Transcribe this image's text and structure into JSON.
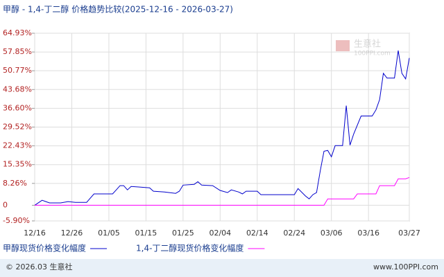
{
  "chart_data": {
    "type": "line",
    "title": "甲醇 - 1,4-丁二醇 价格趋势比较(2025-12-16 - 2026-03-27)",
    "ylim": [
      -5.9,
      64.93
    ],
    "yticks": [
      {
        "value": -5.9,
        "label": "-5.90%"
      },
      0,
      {
        "value": 8.26,
        "label": "8.26%"
      },
      {
        "value": 15.35,
        "label": "15.35%"
      },
      {
        "value": 22.43,
        "label": "22.43%"
      },
      {
        "value": 29.52,
        "label": "29.52%"
      },
      {
        "value": 36.6,
        "label": "36.60%"
      },
      {
        "value": 43.68,
        "label": "43.68%"
      },
      {
        "value": 50.77,
        "label": "50.77%"
      },
      {
        "value": 57.85,
        "label": "57.85%"
      },
      {
        "value": 64.93,
        "label": "64.93%"
      }
    ],
    "xlim": [
      "12/16",
      "03/27"
    ],
    "xticks": [
      "12/16",
      "12/26",
      "01/05",
      "01/15",
      "01/25",
      "02/04",
      "02/14",
      "02/24",
      "03/06",
      "03/16",
      "03/27"
    ],
    "grid": true,
    "series": [
      {
        "name": "甲醇现货价格变化幅度",
        "color": "#0000cc",
        "x": [
          "12/16",
          "12/18",
          "12/19",
          "12/20",
          "12/23",
          "12/25",
          "12/27",
          "12/30",
          "12/31",
          "01/01",
          "01/06",
          "01/07",
          "01/08",
          "01/09",
          "01/10",
          "01/11",
          "01/13",
          "01/16",
          "01/17",
          "01/20",
          "01/23",
          "01/24",
          "01/25",
          "01/28",
          "01/29",
          "01/30",
          "02/02",
          "02/04",
          "02/06",
          "02/07",
          "02/09",
          "02/10",
          "02/11",
          "02/14",
          "02/15",
          "02/24",
          "02/25",
          "02/27",
          "02/28",
          "03/01",
          "03/02",
          "03/03",
          "03/04",
          "03/05",
          "03/06",
          "03/07",
          "03/09",
          "03/10",
          "03/11",
          "03/12",
          "03/14",
          "03/17",
          "03/18",
          "03/19",
          "03/20",
          "03/21",
          "03/23",
          "03/24",
          "03/25",
          "03/26",
          "03/27"
        ],
        "values": [
          0,
          1.9,
          1.4,
          0.9,
          0.9,
          1.4,
          1.1,
          1.1,
          2.7,
          4.3,
          4.3,
          5.8,
          7.4,
          7.4,
          5.8,
          7.1,
          6.9,
          6.6,
          5.3,
          5.0,
          4.5,
          5.3,
          7.6,
          7.9,
          8.9,
          7.6,
          7.4,
          5.6,
          4.8,
          5.8,
          5.0,
          4.3,
          5.3,
          5.3,
          4.0,
          4.0,
          6.3,
          3.5,
          2.4,
          4.0,
          4.8,
          13.1,
          20.4,
          20.7,
          18.3,
          22.5,
          22.5,
          37.6,
          22.7,
          26.9,
          33.7,
          33.7,
          36.0,
          39.9,
          49.8,
          48.0,
          48.0,
          58.4,
          49.8,
          47.7,
          55.6
        ]
      },
      {
        "name": "1,4-丁二醇现货价格变化幅度",
        "color": "#ff00ff",
        "x": [
          "12/16",
          "03/04",
          "03/05",
          "03/12",
          "03/13",
          "03/18",
          "03/19",
          "03/23",
          "03/24",
          "03/26",
          "03/27"
        ],
        "values": [
          0,
          0,
          2.4,
          2.4,
          4.3,
          4.3,
          7.4,
          7.4,
          10.0,
          10.0,
          10.5
        ]
      }
    ],
    "watermark": [
      "生意社",
      "100PPI.com"
    ],
    "footer": {
      "left": "© 2026.03 生意社",
      "right": "www.100PPI.com"
    }
  }
}
